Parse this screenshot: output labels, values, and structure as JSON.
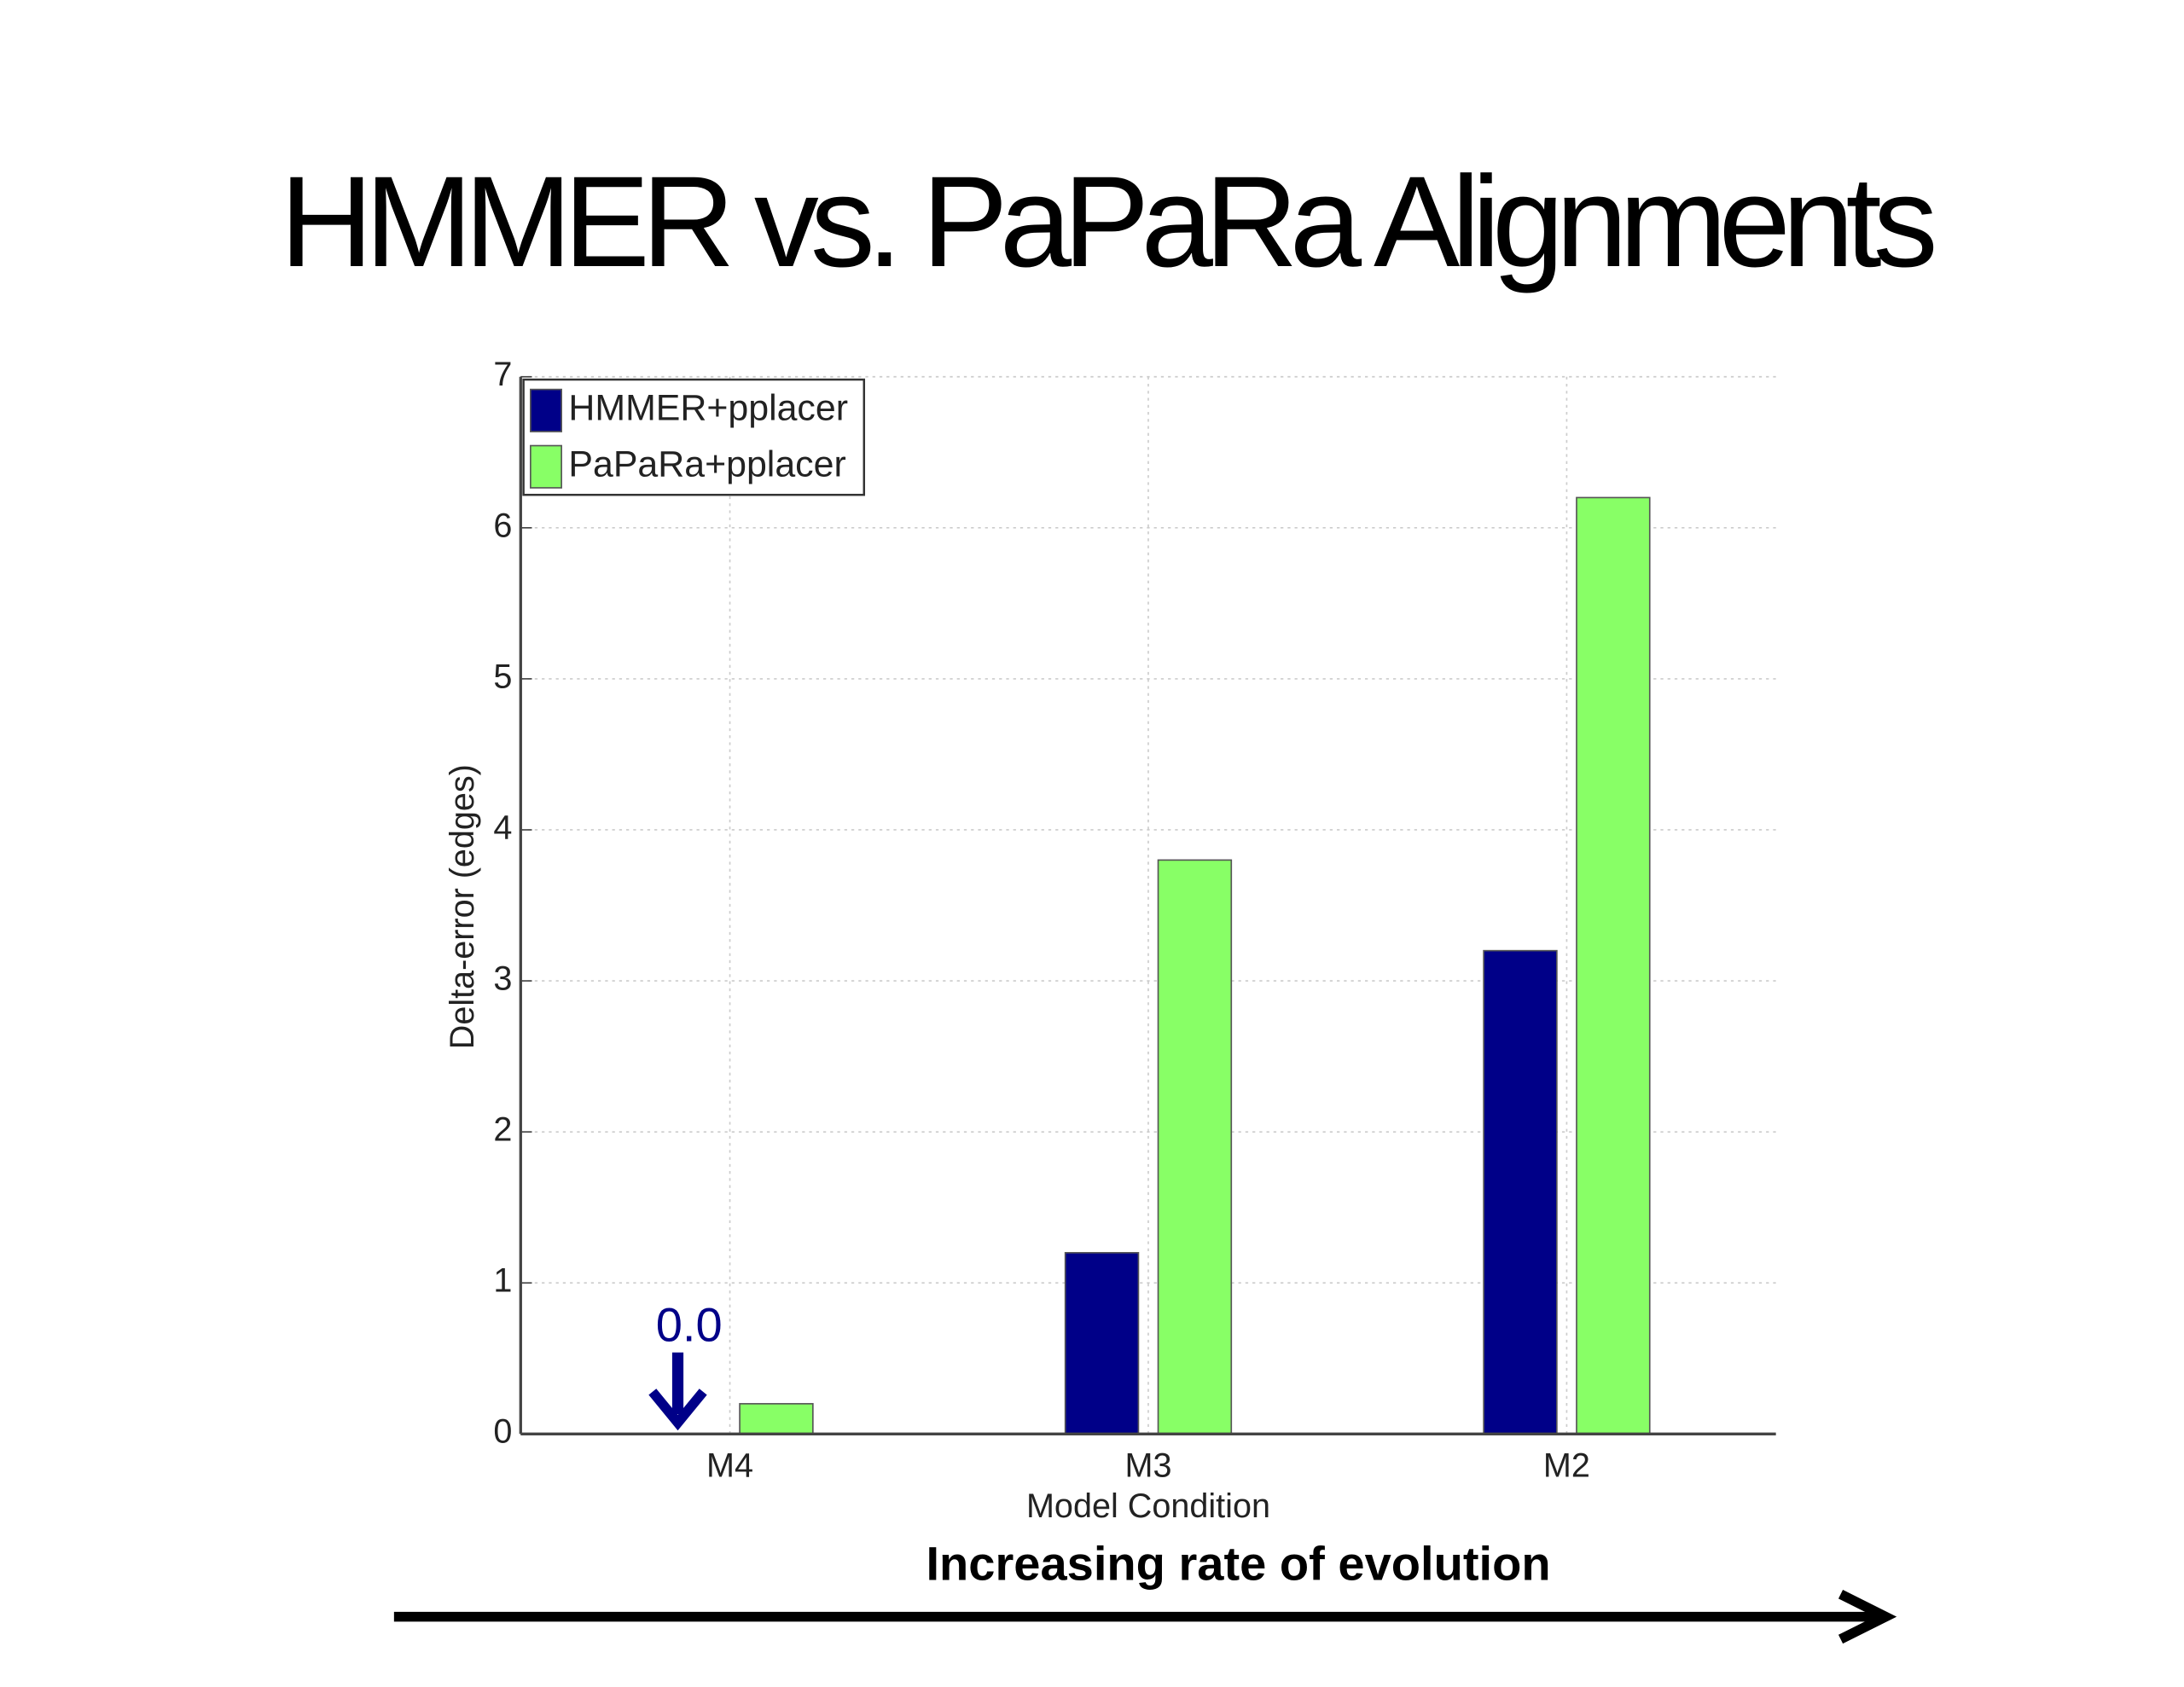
{
  "chart_data": {
    "type": "bar",
    "title": "HMMER vs. PaPaRa Alignments",
    "x_label": "Model Condition",
    "y_label": "Delta-error (edges)",
    "categories": [
      "M4",
      "M3",
      "M2"
    ],
    "series": [
      {
        "name": "HMMER+pplacer",
        "color": "#000088",
        "values": [
          0.0,
          1.2,
          3.2
        ]
      },
      {
        "name": "PaPaRa+pplacer",
        "color": "#88ff66",
        "values": [
          0.2,
          3.8,
          6.2
        ]
      }
    ],
    "ylim": [
      0,
      7
    ],
    "yticks": [
      0,
      1,
      2,
      3,
      4,
      5,
      6,
      7
    ],
    "grid": true,
    "legend": "upper left",
    "annotation": "0.0",
    "caption": "Increasing rate of evolution"
  }
}
